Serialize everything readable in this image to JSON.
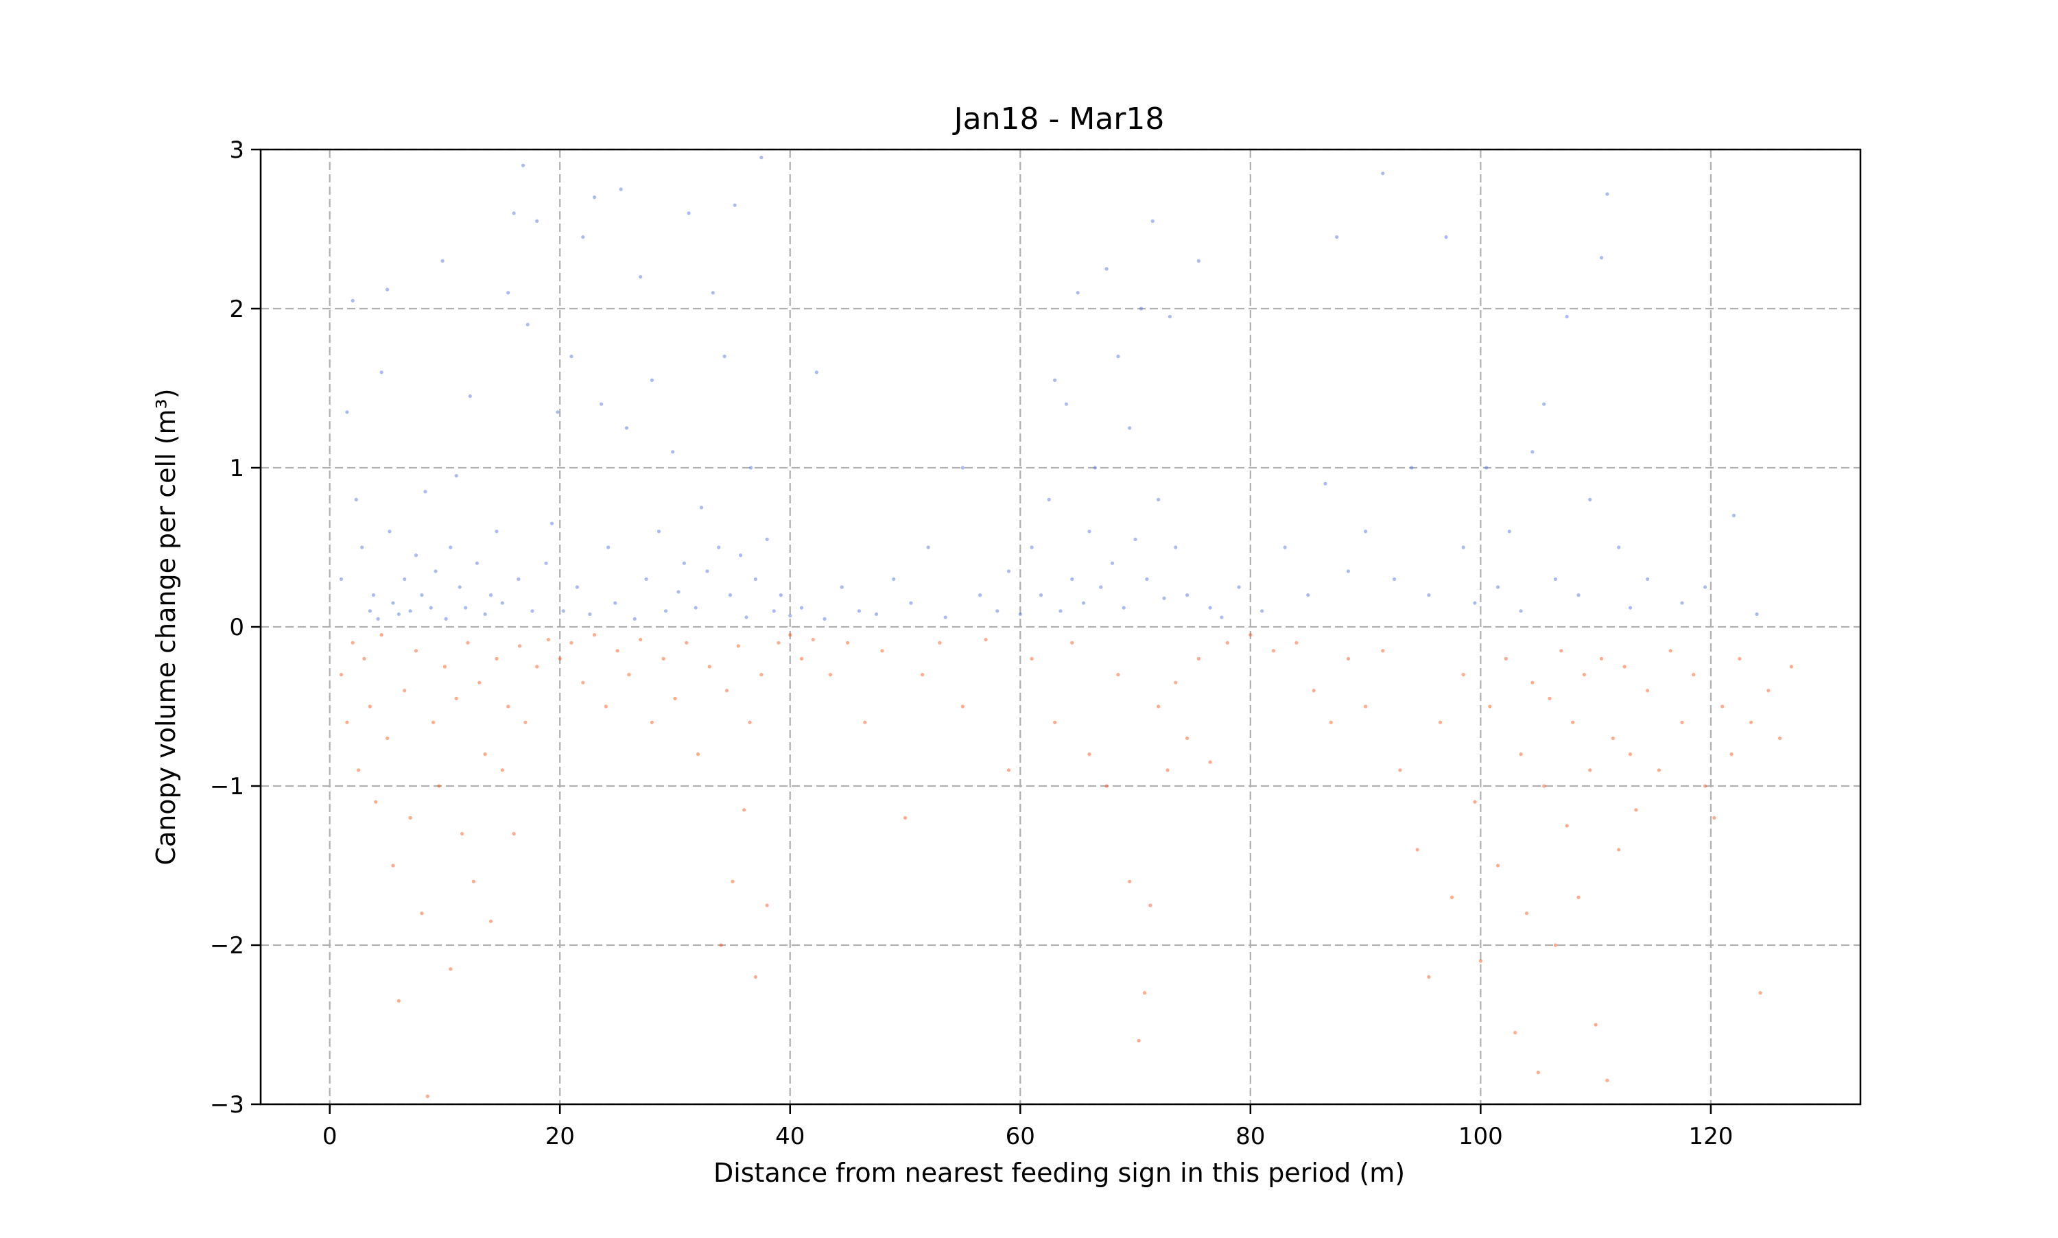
{
  "chart_data": {
    "type": "scatter",
    "title": "Jan18 - Mar18",
    "xlabel": "Distance from nearest feeding sign in this period (m)",
    "ylabel": "Canopy volume change per cell (m³)",
    "xlim": [
      -6,
      133
    ],
    "ylim": [
      -3,
      3
    ],
    "xticks": [
      0,
      20,
      40,
      60,
      80,
      100,
      120
    ],
    "yticks": [
      -3,
      -2,
      -1,
      0,
      1,
      2,
      3
    ],
    "xtick_labels": [
      "0",
      "20",
      "40",
      "60",
      "80",
      "100",
      "120"
    ],
    "ytick_labels": [
      "−3",
      "−2",
      "−1",
      "0",
      "1",
      "2",
      "3"
    ],
    "grid": true,
    "series": [
      {
        "color": "#4169e1",
        "alpha": 0.45,
        "points": [
          [
            1.0,
            0.3
          ],
          [
            1.5,
            1.35
          ],
          [
            2.0,
            2.05
          ],
          [
            2.3,
            0.8
          ],
          [
            2.8,
            0.5
          ],
          [
            3.5,
            0.1
          ],
          [
            3.8,
            0.2
          ],
          [
            4.2,
            0.05
          ],
          [
            4.5,
            1.6
          ],
          [
            5.0,
            2.12
          ],
          [
            5.2,
            0.6
          ],
          [
            5.5,
            0.15
          ],
          [
            6.0,
            0.08
          ],
          [
            6.5,
            0.3
          ],
          [
            7.0,
            0.1
          ],
          [
            7.5,
            0.45
          ],
          [
            8.0,
            0.2
          ],
          [
            8.3,
            0.85
          ],
          [
            8.8,
            0.12
          ],
          [
            9.2,
            0.35
          ],
          [
            9.8,
            2.3
          ],
          [
            10.1,
            0.05
          ],
          [
            10.5,
            0.5
          ],
          [
            11.0,
            0.95
          ],
          [
            11.3,
            0.25
          ],
          [
            11.8,
            0.12
          ],
          [
            12.2,
            1.45
          ],
          [
            12.8,
            0.4
          ],
          [
            13.5,
            0.08
          ],
          [
            14.0,
            0.2
          ],
          [
            14.5,
            0.6
          ],
          [
            15.0,
            0.15
          ],
          [
            15.5,
            2.1
          ],
          [
            16.0,
            2.6
          ],
          [
            16.4,
            0.3
          ],
          [
            16.8,
            2.9
          ],
          [
            17.2,
            1.9
          ],
          [
            17.6,
            0.1
          ],
          [
            18.0,
            2.55
          ],
          [
            18.8,
            0.4
          ],
          [
            19.3,
            0.65
          ],
          [
            19.8,
            1.35
          ],
          [
            20.3,
            0.1
          ],
          [
            21.0,
            1.7
          ],
          [
            21.5,
            0.25
          ],
          [
            22.0,
            2.45
          ],
          [
            22.6,
            0.08
          ],
          [
            23.0,
            2.7
          ],
          [
            23.6,
            1.4
          ],
          [
            24.2,
            0.5
          ],
          [
            24.8,
            0.15
          ],
          [
            25.3,
            2.75
          ],
          [
            25.8,
            1.25
          ],
          [
            26.5,
            0.05
          ],
          [
            27.0,
            2.2
          ],
          [
            27.5,
            0.3
          ],
          [
            28.0,
            1.55
          ],
          [
            28.6,
            0.6
          ],
          [
            29.2,
            0.1
          ],
          [
            29.8,
            1.1
          ],
          [
            30.3,
            0.22
          ],
          [
            30.8,
            0.4
          ],
          [
            31.2,
            2.6
          ],
          [
            31.8,
            0.12
          ],
          [
            32.3,
            0.75
          ],
          [
            32.8,
            0.35
          ],
          [
            33.3,
            2.1
          ],
          [
            33.8,
            0.5
          ],
          [
            34.3,
            1.7
          ],
          [
            34.8,
            0.2
          ],
          [
            35.2,
            2.65
          ],
          [
            35.7,
            0.45
          ],
          [
            36.2,
            0.06
          ],
          [
            36.6,
            1.0
          ],
          [
            37.0,
            0.3
          ],
          [
            37.5,
            2.95
          ],
          [
            38.0,
            0.55
          ],
          [
            38.6,
            0.1
          ],
          [
            39.2,
            0.2
          ],
          [
            40.0,
            0.07
          ],
          [
            41.0,
            0.12
          ],
          [
            42.3,
            1.6
          ],
          [
            43.0,
            0.05
          ],
          [
            44.5,
            0.25
          ],
          [
            46.0,
            0.1
          ],
          [
            47.5,
            0.08
          ],
          [
            49.0,
            0.3
          ],
          [
            50.5,
            0.15
          ],
          [
            52.0,
            0.5
          ],
          [
            53.5,
            0.06
          ],
          [
            55.0,
            1.0
          ],
          [
            56.5,
            0.2
          ],
          [
            58.0,
            0.1
          ],
          [
            59.0,
            0.35
          ],
          [
            60.0,
            0.08
          ],
          [
            61.0,
            0.5
          ],
          [
            61.8,
            0.2
          ],
          [
            62.5,
            0.8
          ],
          [
            63.0,
            1.55
          ],
          [
            63.5,
            0.1
          ],
          [
            64.0,
            1.4
          ],
          [
            64.5,
            0.3
          ],
          [
            65.0,
            2.1
          ],
          [
            65.5,
            0.15
          ],
          [
            66.0,
            0.6
          ],
          [
            66.5,
            1.0
          ],
          [
            67.0,
            0.25
          ],
          [
            67.5,
            2.25
          ],
          [
            68.0,
            0.4
          ],
          [
            68.5,
            1.7
          ],
          [
            69.0,
            0.12
          ],
          [
            69.5,
            1.25
          ],
          [
            70.0,
            0.55
          ],
          [
            70.5,
            2.0
          ],
          [
            71.0,
            0.3
          ],
          [
            71.5,
            2.55
          ],
          [
            72.0,
            0.8
          ],
          [
            72.5,
            0.18
          ],
          [
            73.0,
            1.95
          ],
          [
            73.5,
            0.5
          ],
          [
            74.5,
            0.2
          ],
          [
            75.5,
            2.3
          ],
          [
            76.5,
            0.12
          ],
          [
            77.5,
            0.06
          ],
          [
            79.0,
            0.25
          ],
          [
            81.0,
            0.1
          ],
          [
            83.0,
            0.5
          ],
          [
            85.0,
            0.2
          ],
          [
            86.5,
            0.9
          ],
          [
            87.5,
            2.45
          ],
          [
            88.5,
            0.35
          ],
          [
            90.0,
            0.6
          ],
          [
            91.5,
            2.85
          ],
          [
            92.5,
            0.3
          ],
          [
            94.0,
            1.0
          ],
          [
            95.5,
            0.2
          ],
          [
            97.0,
            2.45
          ],
          [
            98.5,
            0.5
          ],
          [
            99.5,
            0.15
          ],
          [
            100.5,
            1.0
          ],
          [
            101.5,
            0.25
          ],
          [
            102.5,
            0.6
          ],
          [
            103.5,
            0.1
          ],
          [
            104.5,
            1.1
          ],
          [
            105.5,
            1.4
          ],
          [
            106.5,
            0.3
          ],
          [
            107.5,
            1.95
          ],
          [
            108.5,
            0.2
          ],
          [
            109.5,
            0.8
          ],
          [
            110.5,
            2.32
          ],
          [
            111.0,
            2.72
          ],
          [
            112.0,
            0.5
          ],
          [
            113.0,
            0.12
          ],
          [
            114.5,
            0.3
          ],
          [
            117.5,
            0.15
          ],
          [
            119.5,
            0.25
          ],
          [
            122.0,
            0.7
          ],
          [
            124.0,
            0.08
          ]
        ]
      },
      {
        "color": "#ff4500",
        "alpha": 0.45,
        "points": [
          [
            1.0,
            -0.3
          ],
          [
            1.5,
            -0.6
          ],
          [
            2.0,
            -0.1
          ],
          [
            2.5,
            -0.9
          ],
          [
            3.0,
            -0.2
          ],
          [
            3.5,
            -0.5
          ],
          [
            4.0,
            -1.1
          ],
          [
            4.5,
            -0.05
          ],
          [
            5.0,
            -0.7
          ],
          [
            5.5,
            -1.5
          ],
          [
            6.0,
            -2.35
          ],
          [
            6.5,
            -0.4
          ],
          [
            7.0,
            -1.2
          ],
          [
            7.5,
            -0.15
          ],
          [
            8.0,
            -1.8
          ],
          [
            8.5,
            -2.95
          ],
          [
            9.0,
            -0.6
          ],
          [
            9.5,
            -1.0
          ],
          [
            10.0,
            -0.25
          ],
          [
            10.5,
            -2.15
          ],
          [
            11.0,
            -0.45
          ],
          [
            11.5,
            -1.3
          ],
          [
            12.0,
            -0.1
          ],
          [
            12.5,
            -1.6
          ],
          [
            13.0,
            -0.35
          ],
          [
            13.5,
            -0.8
          ],
          [
            14.0,
            -1.85
          ],
          [
            14.5,
            -0.2
          ],
          [
            15.0,
            -0.9
          ],
          [
            15.5,
            -0.5
          ],
          [
            16.0,
            -1.3
          ],
          [
            16.5,
            -0.12
          ],
          [
            17.0,
            -0.6
          ],
          [
            18.0,
            -0.25
          ],
          [
            19.0,
            -0.08
          ],
          [
            20.0,
            -0.2
          ],
          [
            21.0,
            -0.1
          ],
          [
            22.0,
            -0.35
          ],
          [
            23.0,
            -0.05
          ],
          [
            24.0,
            -0.5
          ],
          [
            25.0,
            -0.15
          ],
          [
            26.0,
            -0.3
          ],
          [
            27.0,
            -0.08
          ],
          [
            28.0,
            -0.6
          ],
          [
            29.0,
            -0.2
          ],
          [
            30.0,
            -0.45
          ],
          [
            31.0,
            -0.1
          ],
          [
            32.0,
            -0.8
          ],
          [
            33.0,
            -0.25
          ],
          [
            34.0,
            -2.0
          ],
          [
            34.5,
            -0.4
          ],
          [
            35.0,
            -1.6
          ],
          [
            35.5,
            -0.12
          ],
          [
            36.0,
            -1.15
          ],
          [
            36.5,
            -0.6
          ],
          [
            37.0,
            -2.2
          ],
          [
            37.5,
            -0.3
          ],
          [
            38.0,
            -1.75
          ],
          [
            39.0,
            -0.1
          ],
          [
            40.0,
            -0.05
          ],
          [
            41.0,
            -0.2
          ],
          [
            42.0,
            -0.08
          ],
          [
            43.5,
            -0.3
          ],
          [
            45.0,
            -0.1
          ],
          [
            46.5,
            -0.6
          ],
          [
            48.0,
            -0.15
          ],
          [
            50.0,
            -1.2
          ],
          [
            51.5,
            -0.3
          ],
          [
            53.0,
            -0.1
          ],
          [
            55.0,
            -0.5
          ],
          [
            57.0,
            -0.08
          ],
          [
            59.0,
            -0.9
          ],
          [
            61.0,
            -0.2
          ],
          [
            63.0,
            -0.6
          ],
          [
            64.5,
            -0.1
          ],
          [
            66.0,
            -0.8
          ],
          [
            67.5,
            -1.0
          ],
          [
            68.5,
            -0.3
          ],
          [
            69.5,
            -1.6
          ],
          [
            70.3,
            -2.6
          ],
          [
            70.8,
            -2.3
          ],
          [
            71.3,
            -1.75
          ],
          [
            72.0,
            -0.5
          ],
          [
            72.8,
            -0.9
          ],
          [
            73.5,
            -0.35
          ],
          [
            74.5,
            -0.7
          ],
          [
            75.5,
            -0.2
          ],
          [
            76.5,
            -0.85
          ],
          [
            78.0,
            -0.1
          ],
          [
            80.0,
            -0.05
          ],
          [
            82.0,
            -0.15
          ],
          [
            84.0,
            -0.1
          ],
          [
            85.5,
            -0.4
          ],
          [
            87.0,
            -0.6
          ],
          [
            88.5,
            -0.2
          ],
          [
            90.0,
            -0.5
          ],
          [
            91.5,
            -0.15
          ],
          [
            93.0,
            -0.9
          ],
          [
            94.5,
            -1.4
          ],
          [
            95.5,
            -2.2
          ],
          [
            96.5,
            -0.6
          ],
          [
            97.5,
            -1.7
          ],
          [
            98.5,
            -0.3
          ],
          [
            99.5,
            -1.1
          ],
          [
            100.0,
            -2.1
          ],
          [
            100.8,
            -0.5
          ],
          [
            101.5,
            -1.5
          ],
          [
            102.2,
            -0.2
          ],
          [
            103.0,
            -2.55
          ],
          [
            103.5,
            -0.8
          ],
          [
            104.0,
            -1.8
          ],
          [
            104.5,
            -0.35
          ],
          [
            105.0,
            -2.8
          ],
          [
            105.5,
            -1.0
          ],
          [
            106.0,
            -0.45
          ],
          [
            106.5,
            -2.0
          ],
          [
            107.0,
            -0.15
          ],
          [
            107.5,
            -1.25
          ],
          [
            108.0,
            -0.6
          ],
          [
            108.5,
            -1.7
          ],
          [
            109.0,
            -0.3
          ],
          [
            109.5,
            -0.9
          ],
          [
            110.0,
            -2.5
          ],
          [
            110.5,
            -0.2
          ],
          [
            111.0,
            -2.85
          ],
          [
            111.5,
            -0.7
          ],
          [
            112.0,
            -1.4
          ],
          [
            112.5,
            -0.25
          ],
          [
            113.0,
            -0.8
          ],
          [
            113.5,
            -1.15
          ],
          [
            114.5,
            -0.4
          ],
          [
            115.5,
            -0.9
          ],
          [
            116.5,
            -0.15
          ],
          [
            117.5,
            -0.6
          ],
          [
            118.5,
            -0.3
          ],
          [
            119.5,
            -1.0
          ],
          [
            120.3,
            -1.2
          ],
          [
            121.0,
            -0.5
          ],
          [
            121.8,
            -0.8
          ],
          [
            122.5,
            -0.2
          ],
          [
            123.5,
            -0.6
          ],
          [
            124.3,
            -2.3
          ],
          [
            125.0,
            -0.4
          ],
          [
            126.0,
            -0.7
          ],
          [
            127.0,
            -0.25
          ]
        ]
      }
    ]
  }
}
